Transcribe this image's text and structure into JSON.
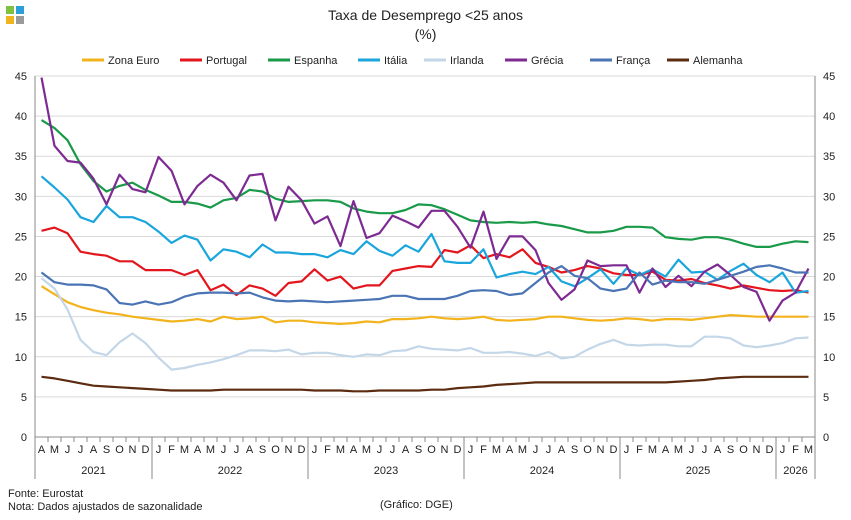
{
  "header": {
    "title": "Taxa de Desemprego <25 anos",
    "subtitle": "(%)"
  },
  "logo_colors": [
    "#7fc241",
    "#2a9fd8",
    "#f0b41c",
    "#9a9a9a"
  ],
  "footer": {
    "source": "Fonte: Eurostat",
    "note": "Nota: Dados ajustados de sazonalidade",
    "credit": "(Gráfico: DGE)"
  },
  "chart_data": {
    "type": "line",
    "title": "Taxa de Desemprego <25 anos",
    "subtitle": "(%)",
    "ylim": [
      0,
      45
    ],
    "yticks": [
      0,
      5,
      10,
      15,
      20,
      25,
      30,
      35,
      40,
      45
    ],
    "grid": true,
    "legend": "top",
    "month_labels": [
      "A",
      "M",
      "J",
      "J",
      "A",
      "S",
      "O",
      "N",
      "D",
      "J",
      "F",
      "M",
      "A",
      "M",
      "J",
      "J",
      "A",
      "S",
      "O",
      "N",
      "D",
      "J",
      "F",
      "M",
      "A",
      "M",
      "J",
      "J",
      "A",
      "S",
      "O",
      "N",
      "D",
      "J",
      "F",
      "M",
      "A",
      "M",
      "J",
      "J",
      "A",
      "S",
      "O",
      "N",
      "D",
      "J",
      "F",
      "M",
      "A",
      "M",
      "J",
      "J",
      "A",
      "S",
      "O",
      "N",
      "D",
      "J",
      "F",
      "M"
    ],
    "years": [
      {
        "label": "2021",
        "start": 0,
        "end": 8
      },
      {
        "label": "2022",
        "start": 9,
        "end": 20
      },
      {
        "label": "2023",
        "start": 21,
        "end": 32
      },
      {
        "label": "2024",
        "start": 33,
        "end": 44
      },
      {
        "label": "2025",
        "start": 45,
        "end": 56
      },
      {
        "label": "2026",
        "start": 57,
        "end": 59
      }
    ],
    "series": [
      {
        "name": "Zona Euro",
        "color": "#f2b31d",
        "values": [
          18.8,
          17.8,
          16.8,
          16.2,
          15.8,
          15.5,
          15.3,
          15.0,
          14.8,
          14.6,
          14.4,
          14.5,
          14.7,
          14.4,
          15.0,
          14.7,
          14.8,
          15.0,
          14.3,
          14.5,
          14.5,
          14.3,
          14.2,
          14.1,
          14.2,
          14.4,
          14.3,
          14.7,
          14.7,
          14.8,
          15.0,
          14.8,
          14.7,
          14.8,
          15.0,
          14.6,
          14.5,
          14.6,
          14.7,
          15.0,
          15.0,
          14.8,
          14.6,
          14.5,
          14.6,
          14.8,
          14.7,
          14.5,
          14.7,
          14.7,
          14.6,
          14.8,
          15.0,
          15.2,
          15.1,
          15.0,
          15.0,
          15.0,
          15.0,
          15.0
        ]
      },
      {
        "name": "Portugal",
        "color": "#e3161d",
        "values": [
          25.7,
          26.1,
          25.4,
          23.1,
          22.8,
          22.6,
          21.9,
          21.9,
          20.8,
          20.8,
          20.8,
          20.2,
          20.8,
          18.3,
          19.0,
          17.7,
          18.9,
          18.5,
          17.6,
          19.2,
          19.4,
          20.9,
          19.5,
          20.0,
          18.5,
          18.9,
          18.9,
          20.7,
          21.0,
          21.3,
          21.2,
          23.3,
          23.0,
          23.9,
          22.3,
          22.8,
          22.4,
          23.4,
          21.7,
          21.2,
          20.5,
          20.8,
          21.3,
          21.0,
          20.4,
          20.2,
          20.2,
          20.6,
          19.6,
          19.5,
          19.7,
          19.2,
          18.9,
          18.5,
          18.9,
          18.6,
          18.3,
          18.2,
          18.3,
          18.0
        ]
      },
      {
        "name": "Espanha",
        "color": "#199a48",
        "values": [
          39.5,
          38.5,
          37.0,
          34.0,
          31.9,
          30.6,
          31.3,
          31.7,
          30.8,
          30.1,
          29.3,
          29.3,
          29.1,
          28.6,
          29.5,
          29.8,
          30.8,
          30.6,
          29.7,
          29.3,
          29.4,
          29.5,
          29.5,
          29.3,
          28.5,
          28.1,
          27.9,
          27.9,
          28.3,
          29.0,
          28.9,
          28.4,
          27.7,
          27.0,
          26.8,
          26.7,
          26.8,
          26.7,
          26.8,
          26.5,
          26.3,
          25.9,
          25.5,
          25.5,
          25.7,
          26.2,
          26.2,
          26.1,
          24.9,
          24.7,
          24.6,
          24.9,
          24.9,
          24.6,
          24.1,
          23.7,
          23.7,
          24.1,
          24.4,
          24.3
        ]
      },
      {
        "name": "Itália",
        "color": "#1aa5dc",
        "values": [
          32.5,
          31.1,
          29.6,
          27.4,
          26.8,
          28.8,
          27.4,
          27.4,
          26.8,
          25.6,
          24.2,
          25.1,
          24.6,
          22.0,
          23.4,
          23.1,
          22.4,
          24.0,
          23.0,
          23.0,
          22.8,
          22.8,
          22.4,
          23.3,
          22.8,
          24.4,
          23.2,
          22.6,
          23.9,
          23.1,
          25.3,
          21.9,
          21.7,
          21.7,
          23.4,
          19.9,
          20.3,
          20.6,
          20.3,
          21.2,
          19.4,
          18.8,
          19.8,
          20.9,
          19.1,
          21.0,
          20.2,
          20.9,
          20.0,
          22.1,
          20.5,
          20.6,
          19.6,
          20.7,
          21.6,
          20.2,
          19.3,
          20.5,
          18.0,
          18.2
        ]
      },
      {
        "name": "Irlanda",
        "color": "#c4d7e8",
        "values": [
          19.8,
          18.5,
          15.9,
          12.1,
          10.6,
          10.2,
          11.8,
          12.9,
          11.7,
          9.9,
          8.4,
          8.6,
          9.0,
          9.3,
          9.7,
          10.2,
          10.8,
          10.8,
          10.7,
          10.9,
          10.3,
          10.5,
          10.5,
          10.2,
          10.0,
          10.3,
          10.2,
          10.7,
          10.8,
          11.3,
          11.0,
          10.9,
          10.8,
          11.1,
          10.5,
          10.5,
          10.6,
          10.4,
          10.1,
          10.6,
          9.8,
          10.0,
          10.9,
          11.6,
          12.1,
          11.5,
          11.4,
          11.5,
          11.5,
          11.3,
          11.3,
          12.5,
          12.5,
          12.3,
          11.4,
          11.2,
          11.4,
          11.7,
          12.3,
          12.4
        ]
      },
      {
        "name": "Grécia",
        "color": "#7d2a92",
        "values": [
          44.8,
          36.3,
          34.4,
          34.2,
          32.2,
          29.0,
          32.7,
          30.9,
          30.5,
          34.9,
          33.2,
          29.0,
          31.3,
          32.7,
          31.7,
          29.5,
          32.6,
          32.8,
          27.0,
          31.2,
          29.5,
          26.6,
          27.5,
          23.8,
          29.4,
          24.8,
          25.4,
          27.6,
          26.9,
          26.1,
          28.2,
          28.2,
          26.2,
          23.6,
          28.1,
          22.2,
          25.0,
          25.0,
          23.3,
          19.2,
          17.1,
          18.4,
          22.0,
          21.3,
          21.4,
          21.4,
          18.0,
          21.0,
          18.7,
          20.1,
          18.8,
          20.6,
          21.5,
          20.2,
          18.7,
          18.1,
          14.5,
          17.0,
          18.0,
          21.0
        ]
      },
      {
        "name": "França",
        "color": "#4a74b4",
        "values": [
          20.5,
          19.3,
          19.0,
          19.0,
          18.9,
          18.4,
          16.7,
          16.5,
          16.9,
          16.5,
          16.8,
          17.5,
          17.9,
          18.0,
          18.0,
          17.9,
          18.0,
          17.4,
          17.0,
          16.9,
          17.0,
          16.9,
          16.8,
          16.9,
          17.0,
          17.1,
          17.2,
          17.6,
          17.6,
          17.2,
          17.2,
          17.2,
          17.6,
          18.2,
          18.3,
          18.2,
          17.7,
          17.9,
          19.2,
          20.5,
          21.3,
          20.1,
          19.8,
          18.5,
          18.2,
          18.5,
          20.5,
          19.0,
          19.5,
          19.3,
          19.3,
          19.1,
          19.6,
          20.1,
          20.6,
          21.2,
          21.4,
          21.0,
          20.5,
          20.5
        ]
      },
      {
        "name": "Alemanha",
        "color": "#5b2c0f",
        "values": [
          7.5,
          7.3,
          7.0,
          6.7,
          6.4,
          6.3,
          6.2,
          6.1,
          6.0,
          5.9,
          5.8,
          5.8,
          5.8,
          5.8,
          5.9,
          5.9,
          5.9,
          5.9,
          5.9,
          5.9,
          5.9,
          5.8,
          5.8,
          5.8,
          5.7,
          5.7,
          5.8,
          5.8,
          5.8,
          5.8,
          5.9,
          5.9,
          6.1,
          6.2,
          6.3,
          6.5,
          6.6,
          6.7,
          6.8,
          6.8,
          6.8,
          6.8,
          6.8,
          6.8,
          6.8,
          6.8,
          6.8,
          6.8,
          6.8,
          6.9,
          7.0,
          7.1,
          7.3,
          7.4,
          7.5,
          7.5,
          7.5,
          7.5,
          7.5,
          7.5
        ]
      }
    ]
  }
}
